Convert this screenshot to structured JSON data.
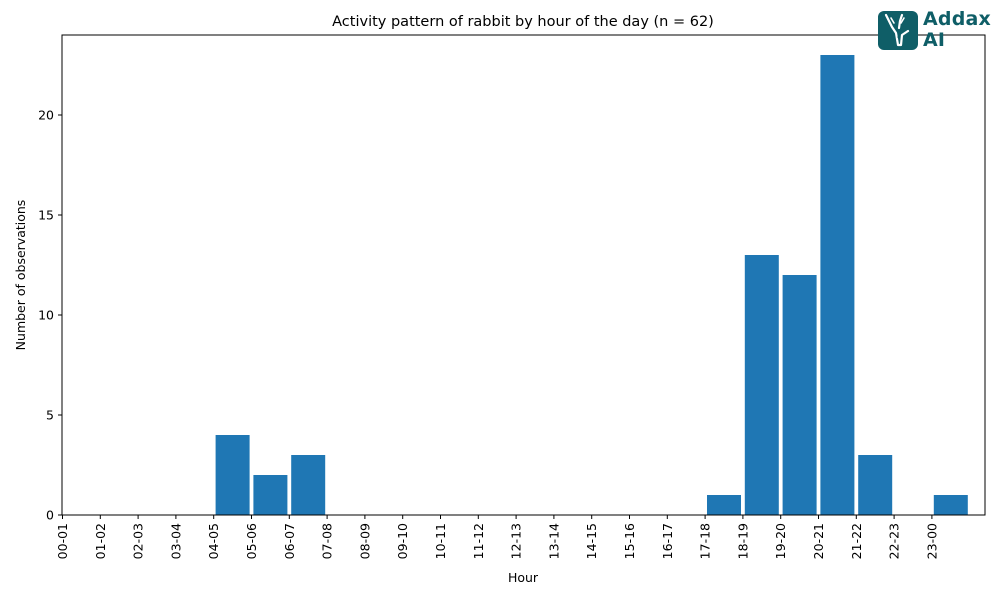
{
  "chart_data": {
    "type": "bar",
    "title": "Activity pattern of rabbit by hour of the day (n = 62)",
    "xlabel": "Hour",
    "ylabel": "Number of observations",
    "categories": [
      "00-01",
      "01-02",
      "02-03",
      "03-04",
      "04-05",
      "05-06",
      "06-07",
      "07-08",
      "08-09",
      "09-10",
      "10-11",
      "11-12",
      "12-13",
      "13-14",
      "14-15",
      "15-16",
      "16-17",
      "17-18",
      "18-19",
      "19-20",
      "20-21",
      "21-22",
      "22-23",
      "23-00"
    ],
    "values": [
      0,
      0,
      0,
      0,
      4,
      2,
      3,
      0,
      0,
      0,
      0,
      0,
      0,
      0,
      0,
      0,
      0,
      1,
      13,
      12,
      23,
      3,
      0,
      1
    ],
    "ylim": [
      0,
      24
    ],
    "yticks": [
      0,
      5,
      10,
      15,
      20
    ],
    "bar_color": "#1f77b4",
    "grid": false,
    "tick_label_rotation": "vertical"
  },
  "logo": {
    "text_line1": "Addax",
    "text_line2": "AI",
    "color": "#0f5e67",
    "icon": "antelope-head-icon"
  }
}
